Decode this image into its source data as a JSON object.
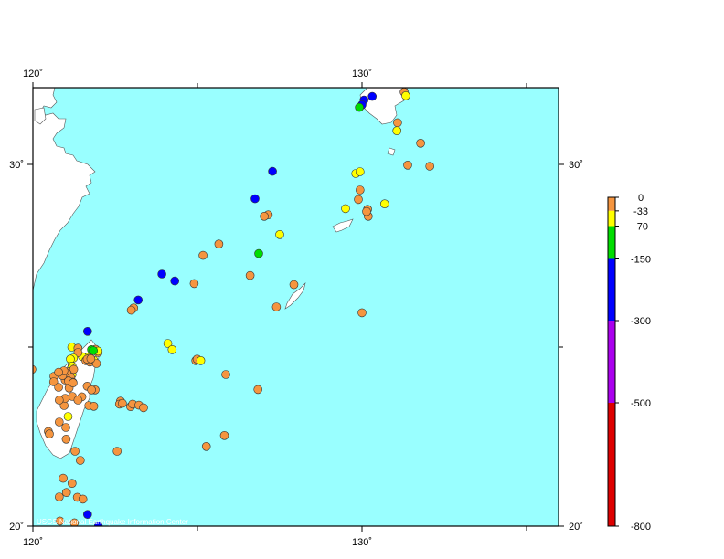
{
  "map": {
    "lon_range": [
      120,
      136
    ],
    "lat_range": [
      20,
      33
    ],
    "ocean_color": "#99ffff",
    "land_color": "#ffffff",
    "frame_color": "#000000",
    "top_tick_labels": [
      "120˚",
      "130˚"
    ],
    "bottom_tick_labels": [
      "120˚",
      "130˚"
    ],
    "left_tick_labels": [
      "30˚",
      "20˚"
    ],
    "right_tick_labels": [
      "30˚",
      "20˚"
    ],
    "credit": "USGS National Earthquake Information Center"
  },
  "legend": {
    "labels": [
      "0",
      "-33",
      "-70",
      "-150",
      "-300",
      "-500",
      "-800"
    ],
    "bands": [
      {
        "from": 0,
        "to": -33,
        "color": "#f5953f"
      },
      {
        "from": -33,
        "to": -70,
        "color": "#ffff00"
      },
      {
        "from": -70,
        "to": -150,
        "color": "#00dd00"
      },
      {
        "from": -150,
        "to": -300,
        "color": "#0000ff"
      },
      {
        "from": -300,
        "to": -500,
        "color": "#aa00ee"
      },
      {
        "from": -500,
        "to": -800,
        "color": "#dd0000"
      }
    ]
  },
  "chart_data": {
    "type": "scatter",
    "xlim": [
      120,
      136
    ],
    "ylim": [
      20,
      33
    ],
    "depth_classes": {
      "shallow": {
        "depth_range": [
          0,
          -33
        ],
        "color": "#f5953f"
      },
      "intermediate": {
        "depth_range": [
          -33,
          -70
        ],
        "color": "#ffff00"
      },
      "mid": {
        "depth_range": [
          -70,
          -150
        ],
        "color": "#00dd00"
      },
      "deep": {
        "depth_range": [
          -150,
          -300
        ],
        "color": "#0000ff"
      }
    },
    "points": [
      {
        "lon": 131.44,
        "lat": 32.44,
        "c": "shallow"
      },
      {
        "lon": 130.28,
        "lat": 32.31,
        "c": "shallow"
      },
      {
        "lon": 130.44,
        "lat": 32.4,
        "c": "shallow"
      },
      {
        "lon": 131.33,
        "lat": 32.25,
        "c": "intermediate"
      },
      {
        "lon": 130.31,
        "lat": 31.76,
        "c": "deep"
      },
      {
        "lon": 130.06,
        "lat": 31.66,
        "c": "deep"
      },
      {
        "lon": 130.0,
        "lat": 31.53,
        "c": "deep"
      },
      {
        "lon": 129.92,
        "lat": 31.46,
        "c": "mid"
      },
      {
        "lon": 131.28,
        "lat": 31.88,
        "c": "shallow"
      },
      {
        "lon": 131.33,
        "lat": 31.78,
        "c": "intermediate"
      },
      {
        "lon": 131.08,
        "lat": 31.04,
        "c": "shallow"
      },
      {
        "lon": 131.06,
        "lat": 30.82,
        "c": "intermediate"
      },
      {
        "lon": 131.78,
        "lat": 30.48,
        "c": "shallow"
      },
      {
        "lon": 131.39,
        "lat": 29.88,
        "c": "shallow"
      },
      {
        "lon": 132.06,
        "lat": 29.85,
        "c": "shallow"
      },
      {
        "lon": 127.28,
        "lat": 29.71,
        "c": "deep"
      },
      {
        "lon": 129.81,
        "lat": 29.65,
        "c": "intermediate"
      },
      {
        "lon": 129.94,
        "lat": 29.7,
        "c": "intermediate"
      },
      {
        "lon": 129.94,
        "lat": 29.2,
        "c": "shallow"
      },
      {
        "lon": 129.89,
        "lat": 28.94,
        "c": "shallow"
      },
      {
        "lon": 126.75,
        "lat": 28.96,
        "c": "deep"
      },
      {
        "lon": 130.69,
        "lat": 28.82,
        "c": "intermediate"
      },
      {
        "lon": 130.17,
        "lat": 28.67,
        "c": "shallow"
      },
      {
        "lon": 130.19,
        "lat": 28.48,
        "c": "shallow"
      },
      {
        "lon": 129.5,
        "lat": 28.69,
        "c": "intermediate"
      },
      {
        "lon": 127.15,
        "lat": 28.52,
        "c": "shallow"
      },
      {
        "lon": 127.03,
        "lat": 28.48,
        "c": "shallow"
      },
      {
        "lon": 130.14,
        "lat": 28.61,
        "c": "shallow"
      },
      {
        "lon": 127.5,
        "lat": 27.98,
        "c": "intermediate"
      },
      {
        "lon": 125.65,
        "lat": 27.72,
        "c": "shallow"
      },
      {
        "lon": 125.17,
        "lat": 27.41,
        "c": "shallow"
      },
      {
        "lon": 126.86,
        "lat": 27.46,
        "c": "mid"
      },
      {
        "lon": 124.9,
        "lat": 26.64,
        "c": "shallow"
      },
      {
        "lon": 123.92,
        "lat": 26.9,
        "c": "deep"
      },
      {
        "lon": 124.31,
        "lat": 26.71,
        "c": "deep"
      },
      {
        "lon": 126.6,
        "lat": 26.86,
        "c": "shallow"
      },
      {
        "lon": 127.93,
        "lat": 26.61,
        "c": "shallow"
      },
      {
        "lon": 123.2,
        "lat": 26.19,
        "c": "deep"
      },
      {
        "lon": 127.4,
        "lat": 26.0,
        "c": "shallow"
      },
      {
        "lon": 130.0,
        "lat": 25.84,
        "c": "shallow"
      },
      {
        "lon": 123.06,
        "lat": 25.97,
        "c": "shallow"
      },
      {
        "lon": 122.99,
        "lat": 25.91,
        "c": "shallow"
      },
      {
        "lon": 121.66,
        "lat": 25.33,
        "c": "deep"
      },
      {
        "lon": 124.1,
        "lat": 25.0,
        "c": "intermediate"
      },
      {
        "lon": 124.23,
        "lat": 24.83,
        "c": "intermediate"
      },
      {
        "lon": 119.97,
        "lat": 24.29,
        "c": "shallow"
      },
      {
        "lon": 121.98,
        "lat": 24.75,
        "c": "shallow"
      },
      {
        "lon": 121.9,
        "lat": 24.84,
        "c": "shallow"
      },
      {
        "lon": 121.98,
        "lat": 24.79,
        "c": "intermediate"
      },
      {
        "lon": 121.78,
        "lat": 24.83,
        "c": "mid"
      },
      {
        "lon": 121.84,
        "lat": 24.8,
        "c": "mid"
      },
      {
        "lon": 121.85,
        "lat": 24.54,
        "c": "intermediate"
      },
      {
        "lon": 121.67,
        "lat": 24.62,
        "c": "intermediate"
      },
      {
        "lon": 121.5,
        "lat": 24.64,
        "c": "intermediate"
      },
      {
        "lon": 121.61,
        "lat": 24.53,
        "c": "shallow"
      },
      {
        "lon": 121.73,
        "lat": 24.49,
        "c": "shallow"
      },
      {
        "lon": 121.93,
        "lat": 24.45,
        "c": "shallow"
      },
      {
        "lon": 121.72,
        "lat": 24.54,
        "c": "shallow"
      },
      {
        "lon": 121.73,
        "lat": 24.6,
        "c": "shallow"
      },
      {
        "lon": 121.65,
        "lat": 24.57,
        "c": "shallow"
      },
      {
        "lon": 121.76,
        "lat": 24.58,
        "c": "shallow"
      },
      {
        "lon": 121.18,
        "lat": 24.9,
        "c": "intermediate"
      },
      {
        "lon": 121.37,
        "lat": 24.87,
        "c": "shallow"
      },
      {
        "lon": 121.37,
        "lat": 24.75,
        "c": "shallow"
      },
      {
        "lon": 121.23,
        "lat": 24.6,
        "c": "intermediate"
      },
      {
        "lon": 121.14,
        "lat": 24.57,
        "c": "intermediate"
      },
      {
        "lon": 121.19,
        "lat": 24.38,
        "c": "intermediate"
      },
      {
        "lon": 121.17,
        "lat": 24.32,
        "c": "intermediate"
      },
      {
        "lon": 121.19,
        "lat": 24.15,
        "c": "intermediate"
      },
      {
        "lon": 121.1,
        "lat": 24.23,
        "c": "shallow"
      },
      {
        "lon": 121.24,
        "lat": 24.29,
        "c": "shallow"
      },
      {
        "lon": 120.95,
        "lat": 24.16,
        "c": "shallow"
      },
      {
        "lon": 121.04,
        "lat": 24.18,
        "c": "shallow"
      },
      {
        "lon": 121.15,
        "lat": 24.06,
        "c": "shallow"
      },
      {
        "lon": 121.0,
        "lat": 24.05,
        "c": "shallow"
      },
      {
        "lon": 120.98,
        "lat": 24.0,
        "c": "shallow"
      },
      {
        "lon": 121.21,
        "lat": 23.94,
        "c": "shallow"
      },
      {
        "lon": 121.08,
        "lat": 23.97,
        "c": "shallow"
      },
      {
        "lon": 120.64,
        "lat": 24.1,
        "c": "shallow"
      },
      {
        "lon": 120.9,
        "lat": 24.12,
        "c": "shallow"
      },
      {
        "lon": 120.94,
        "lat": 24.25,
        "c": "shallow"
      },
      {
        "lon": 120.78,
        "lat": 24.21,
        "c": "shallow"
      },
      {
        "lon": 120.63,
        "lat": 23.95,
        "c": "shallow"
      },
      {
        "lon": 121.1,
        "lat": 23.78,
        "c": "shallow"
      },
      {
        "lon": 121.22,
        "lat": 23.92,
        "c": "shallow"
      },
      {
        "lon": 121.65,
        "lat": 23.83,
        "c": "shallow"
      },
      {
        "lon": 121.49,
        "lat": 23.54,
        "c": "shallow"
      },
      {
        "lon": 121.2,
        "lat": 23.55,
        "c": "shallow"
      },
      {
        "lon": 120.78,
        "lat": 23.8,
        "c": "shallow"
      },
      {
        "lon": 120.95,
        "lat": 23.3,
        "c": "shallow"
      },
      {
        "lon": 120.98,
        "lat": 23.5,
        "c": "shallow"
      },
      {
        "lon": 121.37,
        "lat": 23.45,
        "c": "shallow"
      },
      {
        "lon": 120.8,
        "lat": 23.45,
        "c": "shallow"
      },
      {
        "lon": 121.7,
        "lat": 23.3,
        "c": "shallow"
      },
      {
        "lon": 121.85,
        "lat": 23.28,
        "c": "shallow"
      },
      {
        "lon": 121.07,
        "lat": 23.0,
        "c": "intermediate"
      },
      {
        "lon": 120.8,
        "lat": 22.85,
        "c": "shallow"
      },
      {
        "lon": 121.0,
        "lat": 22.7,
        "c": "shallow"
      },
      {
        "lon": 120.47,
        "lat": 22.59,
        "c": "shallow"
      },
      {
        "lon": 120.5,
        "lat": 22.52,
        "c": "shallow"
      },
      {
        "lon": 121.01,
        "lat": 22.38,
        "c": "shallow"
      },
      {
        "lon": 121.28,
        "lat": 22.05,
        "c": "shallow"
      },
      {
        "lon": 121.44,
        "lat": 21.8,
        "c": "shallow"
      },
      {
        "lon": 121.19,
        "lat": 21.17,
        "c": "shallow"
      },
      {
        "lon": 121.02,
        "lat": 20.92,
        "c": "shallow"
      },
      {
        "lon": 120.92,
        "lat": 21.31,
        "c": "shallow"
      },
      {
        "lon": 120.8,
        "lat": 20.8,
        "c": "shallow"
      },
      {
        "lon": 121.35,
        "lat": 20.79,
        "c": "shallow"
      },
      {
        "lon": 120.82,
        "lat": 20.14,
        "c": "shallow"
      },
      {
        "lon": 121.52,
        "lat": 20.74,
        "c": "shallow"
      },
      {
        "lon": 121.99,
        "lat": 20.0,
        "c": "deep"
      },
      {
        "lon": 121.66,
        "lat": 20.32,
        "c": "deep"
      },
      {
        "lon": 121.26,
        "lat": 20.09,
        "c": "shallow"
      },
      {
        "lon": 121.89,
        "lat": 23.73,
        "c": "shallow"
      },
      {
        "lon": 121.78,
        "lat": 23.73,
        "c": "shallow"
      },
      {
        "lon": 122.66,
        "lat": 23.42,
        "c": "shallow"
      },
      {
        "lon": 122.63,
        "lat": 23.34,
        "c": "shallow"
      },
      {
        "lon": 122.72,
        "lat": 23.36,
        "c": "shallow"
      },
      {
        "lon": 122.97,
        "lat": 23.27,
        "c": "shallow"
      },
      {
        "lon": 123.03,
        "lat": 23.34,
        "c": "shallow"
      },
      {
        "lon": 123.22,
        "lat": 23.31,
        "c": "shallow"
      },
      {
        "lon": 123.36,
        "lat": 23.24,
        "c": "shallow"
      },
      {
        "lon": 124.95,
        "lat": 24.53,
        "c": "shallow"
      },
      {
        "lon": 124.99,
        "lat": 24.57,
        "c": "shallow"
      },
      {
        "lon": 125.1,
        "lat": 24.53,
        "c": "intermediate"
      },
      {
        "lon": 125.86,
        "lat": 24.15,
        "c": "shallow"
      },
      {
        "lon": 126.84,
        "lat": 23.74,
        "c": "shallow"
      },
      {
        "lon": 125.82,
        "lat": 22.48,
        "c": "shallow"
      },
      {
        "lon": 125.27,
        "lat": 22.18,
        "c": "shallow"
      },
      {
        "lon": 122.56,
        "lat": 22.05,
        "c": "shallow"
      }
    ]
  }
}
